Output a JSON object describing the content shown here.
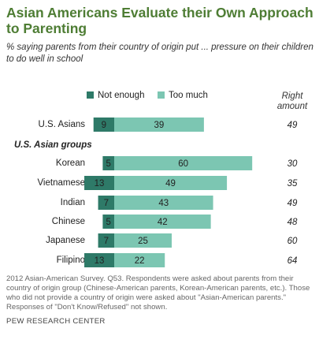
{
  "chart_data": {
    "type": "diverging_bar",
    "title": "Asian Americans Evaluate their Own Approach to Parenting",
    "subtitle": "% saying parents from their country of origin put ... pressure on their children to do well in school",
    "categories": [
      "U.S. Asians",
      "Korean",
      "Vietnamese",
      "Indian",
      "Chinese",
      "Japanese",
      "Filipino"
    ],
    "group_label": "U.S. Asian groups",
    "series": [
      {
        "name": "Not enough",
        "color": "#2e7a68",
        "values": [
          9,
          5,
          13,
          7,
          5,
          7,
          13
        ]
      },
      {
        "name": "Too much",
        "color": "#7cc6b2",
        "values": [
          39,
          60,
          49,
          43,
          42,
          25,
          22
        ]
      },
      {
        "name": "Right amount",
        "values": [
          49,
          30,
          35,
          49,
          48,
          60,
          64
        ]
      }
    ],
    "note": "2012 Asian-American Survey. Q53. Respondents were asked about parents from their country of origin group (Chinese-American parents, Korean-American parents, etc.). Those who did not provide a country of origin were asked about \"Asian-American parents.\" Responses of \"Don't Know/Refused\" not shown.",
    "source": "PEW RESEARCH CENTER"
  }
}
